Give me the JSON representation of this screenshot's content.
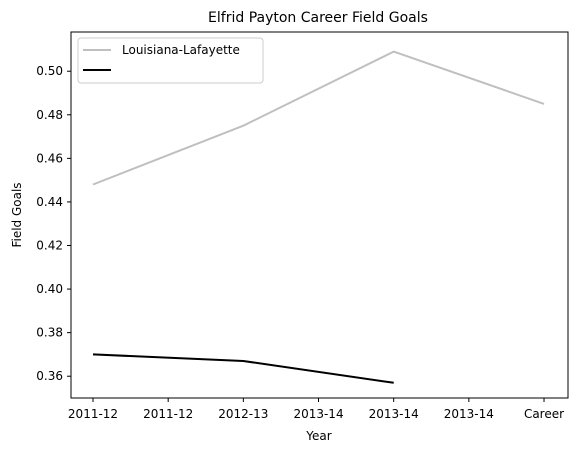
{
  "chart_data": {
    "type": "line",
    "title": "Elfrid Payton  Career Field Goals",
    "xlabel": "Year",
    "ylabel": "Field Goals",
    "categories": [
      "2011-12",
      "2011-12",
      "2012-13",
      "2013-14",
      "2013-14",
      "2013-14",
      "Career"
    ],
    "yticks": [
      0.36,
      0.38,
      0.4,
      0.42,
      0.44,
      0.46,
      0.48,
      0.5
    ],
    "ylim": [
      0.35,
      0.518
    ],
    "grid": false,
    "legend_position": "top-left",
    "series": [
      {
        "name": "Louisiana-Lafayette",
        "color": "#bfbfbf",
        "points": [
          {
            "x_index": 0,
            "y": 0.448
          },
          {
            "x_index": 2,
            "y": 0.475
          },
          {
            "x_index": 4,
            "y": 0.509
          },
          {
            "x_index": 6,
            "y": 0.485
          }
        ]
      },
      {
        "name": "",
        "color": "#000000",
        "points": [
          {
            "x_index": 0,
            "y": 0.37
          },
          {
            "x_index": 2,
            "y": 0.367
          },
          {
            "x_index": 4,
            "y": 0.357
          }
        ]
      }
    ]
  }
}
